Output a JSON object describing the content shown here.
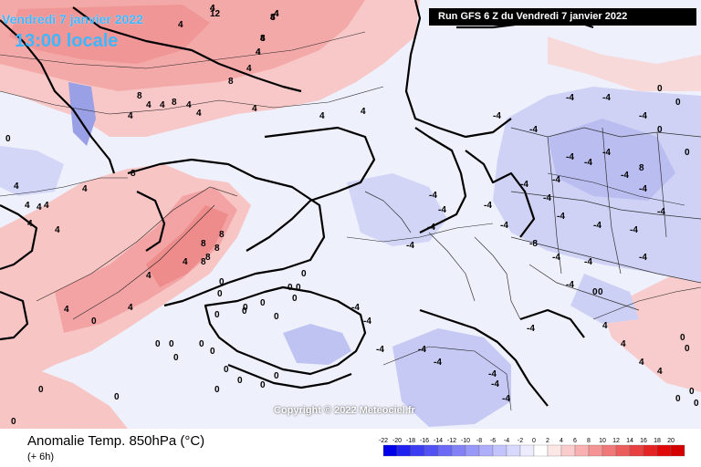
{
  "header": {
    "date": "Vendredi 7 janvier 2022",
    "local_time": "13:00 locale",
    "run": "Run GFS 6 Z du Vendredi 7 janvier 2022"
  },
  "footer": {
    "variable": "Anomalie Temp. 850hPa (°C)",
    "lead": "(+ 6h)",
    "copyright": "Copyright © 2022 Meteociel.fr"
  },
  "scale": {
    "ticks": [
      "-22",
      "-20",
      "-18",
      "-16",
      "-14",
      "-12",
      "-10",
      "-8",
      "-6",
      "-4",
      "-2",
      "0",
      "2",
      "4",
      "6",
      "8",
      "10",
      "12",
      "14",
      "16",
      "18",
      "20"
    ],
    "colors": [
      "#0000e8",
      "#2020f0",
      "#3c3cf2",
      "#5252f4",
      "#6a6af6",
      "#8282f6",
      "#9898f8",
      "#aeaefa",
      "#c4c4fc",
      "#d8d8fd",
      "#ececfe",
      "#ffffff",
      "#fde6e6",
      "#fbcccc",
      "#f8b0b0",
      "#f49494",
      "#f07878",
      "#ec5c5c",
      "#e84040",
      "#e42424",
      "#e00808",
      "#d40000"
    ]
  },
  "map": {
    "contour_labels": [
      "4",
      "4",
      "8",
      "8",
      "4",
      "4",
      "8",
      "12",
      "4",
      "4",
      "0",
      "4",
      "4",
      "8",
      "8",
      "4",
      "4",
      "4",
      "8",
      "4",
      "4",
      "4",
      "4",
      "4",
      "4",
      "4",
      "0",
      "0",
      "0",
      "0",
      "-4",
      "0",
      "0",
      "-4",
      "4",
      "4",
      "-4",
      "-4",
      "0",
      "0",
      "-4",
      "-4",
      "-4",
      "-4",
      "-4",
      "-4",
      "-4",
      "-4",
      "-4",
      "-4",
      "0",
      "0",
      "-4",
      "8",
      "8",
      "8",
      "8",
      "8",
      "4",
      "8",
      "4",
      "4",
      "4",
      "0",
      "0",
      "0",
      "0",
      "0",
      "0",
      "0",
      "0",
      "0",
      "0",
      "0",
      "0",
      "0",
      "0",
      "0",
      "0",
      "0",
      "0",
      "0",
      "0",
      "0",
      "-4",
      "-4",
      "-4",
      "-4",
      "-4",
      "-4",
      "-4",
      "-4",
      "-4",
      "-4",
      "-4",
      "-4",
      "-4",
      "-8",
      "-4",
      "-4",
      "-4",
      "-4",
      "-4",
      "-4",
      "-4",
      "-4",
      "0",
      "0",
      "0",
      "0",
      "0",
      "0",
      "0",
      "0",
      "0",
      "4",
      "4",
      "4",
      "4",
      "4",
      "4",
      "4",
      "4",
      "4"
    ]
  }
}
